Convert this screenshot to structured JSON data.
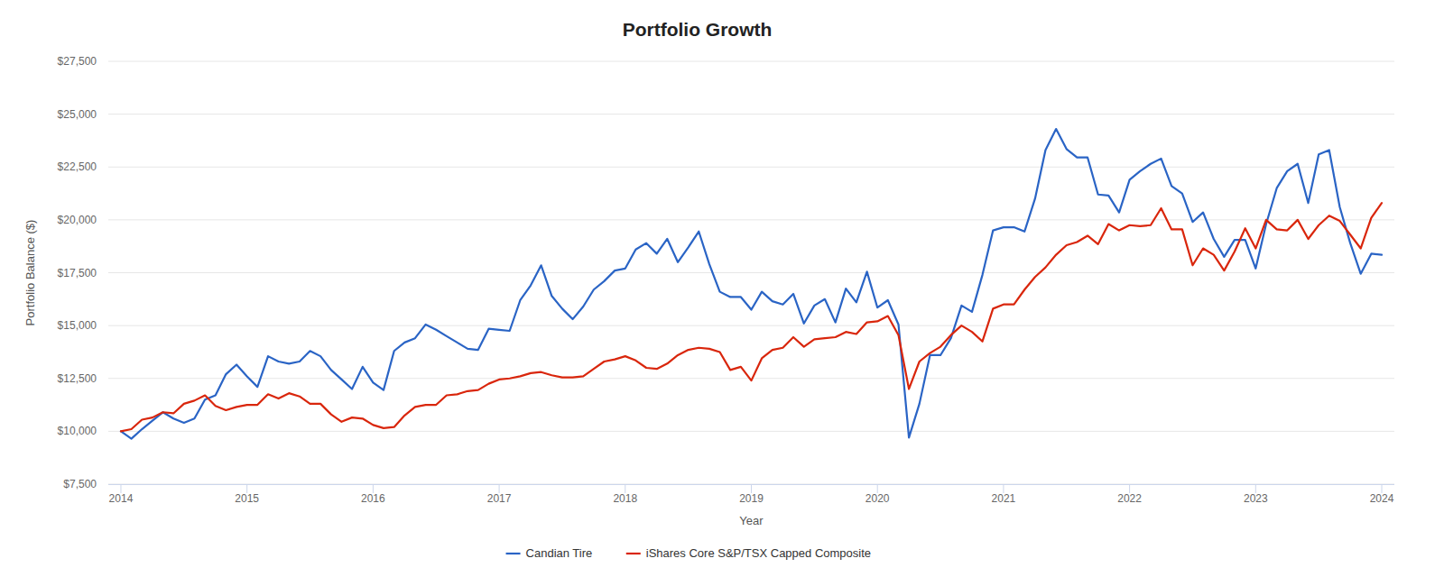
{
  "chart_data": {
    "type": "line",
    "title": "Portfolio Growth",
    "x_label": "Year",
    "y_label": "Portfolio Balance ($)",
    "x": [
      2014.0,
      2014.083,
      2014.167,
      2014.25,
      2014.333,
      2014.417,
      2014.5,
      2014.583,
      2014.667,
      2014.75,
      2014.833,
      2014.917,
      2015.0,
      2015.083,
      2015.167,
      2015.25,
      2015.333,
      2015.417,
      2015.5,
      2015.583,
      2015.667,
      2015.75,
      2015.833,
      2015.917,
      2016.0,
      2016.083,
      2016.167,
      2016.25,
      2016.333,
      2016.417,
      2016.5,
      2016.583,
      2016.667,
      2016.75,
      2016.833,
      2016.917,
      2017.0,
      2017.083,
      2017.167,
      2017.25,
      2017.333,
      2017.417,
      2017.5,
      2017.583,
      2017.667,
      2017.75,
      2017.833,
      2017.917,
      2018.0,
      2018.083,
      2018.167,
      2018.25,
      2018.333,
      2018.417,
      2018.5,
      2018.583,
      2018.667,
      2018.75,
      2018.833,
      2018.917,
      2019.0,
      2019.083,
      2019.167,
      2019.25,
      2019.333,
      2019.417,
      2019.5,
      2019.583,
      2019.667,
      2019.75,
      2019.833,
      2019.917,
      2020.0,
      2020.083,
      2020.167,
      2020.25,
      2020.333,
      2020.417,
      2020.5,
      2020.583,
      2020.667,
      2020.75,
      2020.833,
      2020.917,
      2021.0,
      2021.083,
      2021.167,
      2021.25,
      2021.333,
      2021.417,
      2021.5,
      2021.583,
      2021.667,
      2021.75,
      2021.833,
      2021.917,
      2022.0,
      2022.083,
      2022.167,
      2022.25,
      2022.333,
      2022.417,
      2022.5,
      2022.583,
      2022.667,
      2022.75,
      2022.833,
      2022.917,
      2023.0,
      2023.083,
      2023.167,
      2023.25,
      2023.333,
      2023.417,
      2023.5,
      2023.583,
      2023.667,
      2023.75,
      2023.833,
      2023.917,
      2024.0
    ],
    "series": [
      {
        "name": "Candian Tire",
        "color": "#2a64c5",
        "values": [
          10000,
          9650,
          10100,
          10500,
          10900,
          10600,
          10400,
          10600,
          11500,
          11700,
          12700,
          13150,
          12600,
          12100,
          13550,
          13300,
          13200,
          13300,
          13800,
          13550,
          12900,
          12450,
          12000,
          13050,
          12300,
          11950,
          13800,
          14200,
          14400,
          15050,
          14800,
          14500,
          14200,
          13900,
          13850,
          14850,
          14800,
          14750,
          16200,
          16900,
          17850,
          16400,
          15800,
          15300,
          15900,
          16700,
          17100,
          17600,
          17700,
          18600,
          18900,
          18400,
          19100,
          18000,
          18700,
          19450,
          17900,
          16600,
          16350,
          16350,
          15750,
          16600,
          16150,
          16000,
          16500,
          15100,
          15950,
          16250,
          15150,
          16750,
          16100,
          17550,
          15850,
          16200,
          15050,
          9700,
          11300,
          13600,
          13600,
          14400,
          15950,
          15650,
          17400,
          19500,
          19650,
          19650,
          19450,
          21000,
          23300,
          24300,
          23350,
          22950,
          22950,
          21200,
          21150,
          20350,
          21900,
          22300,
          22650,
          22900,
          21600,
          21250,
          19900,
          20350,
          19100,
          18250,
          19050,
          19050,
          17700,
          19800,
          21500,
          22300,
          22650,
          20800,
          23100,
          23300,
          20600,
          18900,
          17450,
          18400,
          18350
        ]
      },
      {
        "name": "iShares Core S&P/TSX Capped Composite",
        "color": "#d9260c",
        "values": [
          10000,
          10100,
          10550,
          10650,
          10900,
          10850,
          11300,
          11450,
          11700,
          11200,
          11000,
          11150,
          11250,
          11250,
          11750,
          11550,
          11800,
          11650,
          11300,
          11300,
          10800,
          10450,
          10650,
          10600,
          10300,
          10150,
          10200,
          10750,
          11150,
          11250,
          11250,
          11700,
          11750,
          11900,
          11950,
          12250,
          12450,
          12500,
          12600,
          12750,
          12800,
          12650,
          12550,
          12550,
          12600,
          12950,
          13300,
          13400,
          13550,
          13350,
          13000,
          12950,
          13200,
          13600,
          13850,
          13950,
          13900,
          13750,
          12900,
          13050,
          12400,
          13450,
          13850,
          13950,
          14450,
          14000,
          14350,
          14400,
          14450,
          14700,
          14600,
          15150,
          15200,
          15450,
          14550,
          12000,
          13300,
          13700,
          14000,
          14550,
          15000,
          14700,
          14250,
          15800,
          16000,
          16000,
          16700,
          17300,
          17750,
          18350,
          18800,
          18950,
          19250,
          18850,
          19800,
          19500,
          19750,
          19700,
          19750,
          20550,
          19550,
          19550,
          17850,
          18650,
          18350,
          17600,
          18500,
          19600,
          18650,
          20000,
          19550,
          19500,
          20000,
          19100,
          19750,
          20200,
          19950,
          19300,
          18650,
          20100,
          20800
        ]
      }
    ],
    "xlim": [
      2013.9,
      2024.1
    ],
    "xticks": [
      2014,
      2015,
      2016,
      2017,
      2018,
      2019,
      2020,
      2021,
      2022,
      2023,
      2024
    ],
    "ylim": [
      7500,
      27500
    ],
    "yticks": [
      {
        "value": 7500,
        "label": "$7,500"
      },
      {
        "value": 10000,
        "label": "$10,000"
      },
      {
        "value": 12500,
        "label": "$12,500"
      },
      {
        "value": 15000,
        "label": "$15,000"
      },
      {
        "value": 17500,
        "label": "$17,500"
      },
      {
        "value": 20000,
        "label": "$20,000"
      },
      {
        "value": 22500,
        "label": "$22,500"
      },
      {
        "value": 25000,
        "label": "$25,000"
      },
      {
        "value": 27500,
        "label": "$27,500"
      }
    ],
    "grid": true,
    "legend": "bottom"
  }
}
